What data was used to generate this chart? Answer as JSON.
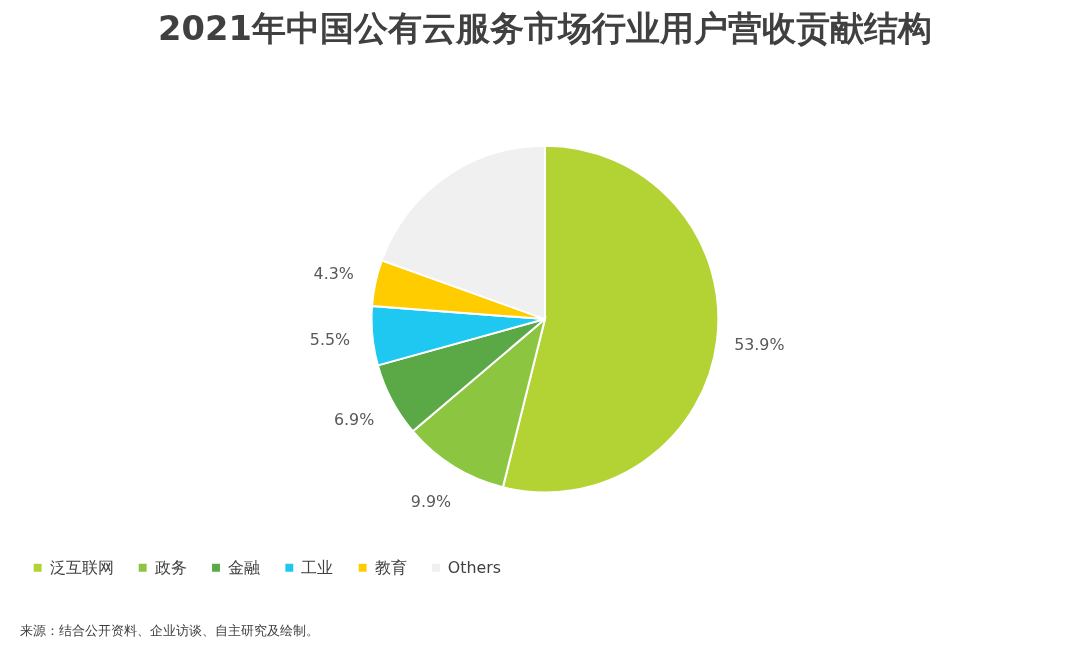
{
  "chart_data": {
    "type": "pie",
    "title": "2021年中国公有云服务市场行业用户营收贡献结构",
    "categories": [
      "泛互联网",
      "政务",
      "金融",
      "工业",
      "教育",
      "Others"
    ],
    "values": [
      53.9,
      9.9,
      6.9,
      5.5,
      4.3,
      19.5
    ],
    "colors": [
      "#b3d335",
      "#8cc540",
      "#5aa846",
      "#1ec8f0",
      "#ffcc00",
      "#f0f0f0"
    ],
    "value_labels": [
      "53.9%",
      "9.9%",
      "6.9%",
      "5.5%",
      "4.3%",
      null
    ],
    "legend": "bottom",
    "annotations": [
      "来源：结合公开资料、企业访谈、自主研究及绘制。"
    ]
  }
}
